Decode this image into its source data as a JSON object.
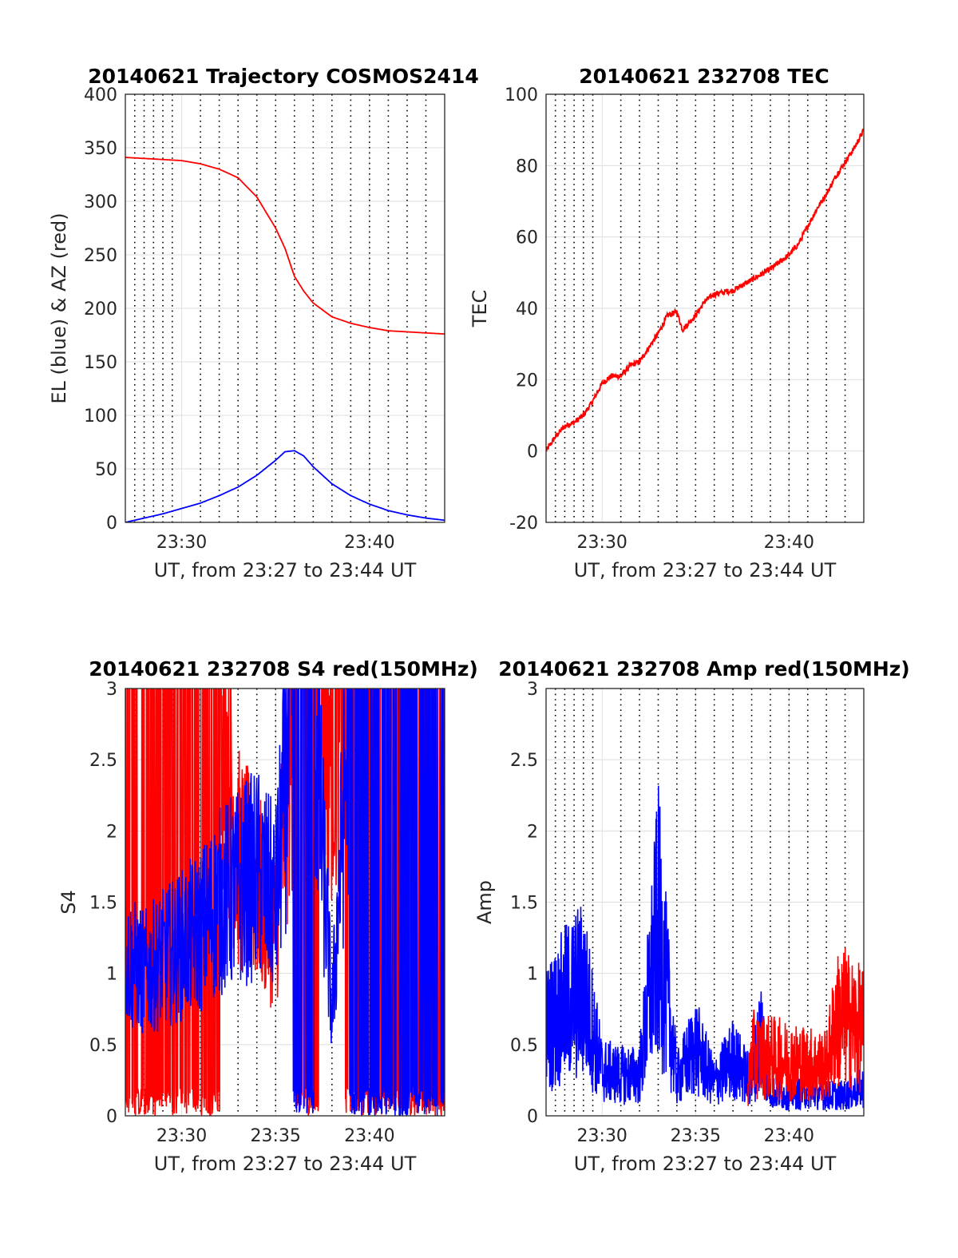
{
  "chart_data": [
    {
      "type": "line",
      "title": "20140621 Trajectory COSMOS2414",
      "xlabel": "UT, from 23:27 to 23:44 UT",
      "ylabel": "EL (blue) & AZ (red)",
      "xlim": [
        "23:27",
        "23:44"
      ],
      "ylim": [
        0,
        400
      ],
      "yticks": [
        0,
        50,
        100,
        150,
        200,
        250,
        300,
        350,
        400
      ],
      "xticks": [
        "23:30",
        "23:40"
      ],
      "grid": "on",
      "series": [
        {
          "color": "#ff0000",
          "x": [
            "23:27",
            "23:28",
            "23:29",
            "23:30",
            "23:31",
            "23:32",
            "23:33",
            "23:34",
            "23:35",
            "23:35.5",
            "23:36",
            "23:36.5",
            "23:37",
            "23:38",
            "23:39",
            "23:40",
            "23:41",
            "23:42",
            "23:43",
            "23:44"
          ],
          "values": [
            341,
            340,
            339,
            338,
            335,
            330,
            322,
            304,
            275,
            256,
            230,
            216,
            205,
            192,
            186,
            182,
            179,
            178,
            177,
            176
          ]
        },
        {
          "color": "#0000ff",
          "x": [
            "23:27",
            "23:28",
            "23:29",
            "23:30",
            "23:31",
            "23:32",
            "23:33",
            "23:34",
            "23:35",
            "23:35.5",
            "23:36",
            "23:36.5",
            "23:37",
            "23:38",
            "23:39",
            "23:40",
            "23:41",
            "23:42",
            "23:43",
            "23:44"
          ],
          "values": [
            0,
            4,
            8,
            13,
            18,
            25,
            33,
            44,
            58,
            66,
            67,
            62,
            52,
            36,
            25,
            17,
            11,
            7,
            4,
            2
          ]
        }
      ]
    },
    {
      "type": "line",
      "title": "20140621 232708 TEC",
      "xlabel": "UT, from 23:27 to 23:44 UT",
      "ylabel": "TEC",
      "xlim": [
        "23:27",
        "23:44"
      ],
      "ylim": [
        -20,
        100
      ],
      "yticks": [
        -20,
        0,
        20,
        40,
        60,
        80,
        100
      ],
      "xticks": [
        "23:30",
        "23:40"
      ],
      "grid": "on",
      "series": [
        {
          "color": "#ff0000",
          "x": [
            "23:27",
            "23:27.5",
            "23:28",
            "23:28.5",
            "23:29",
            "23:29.5",
            "23:30",
            "23:30.5",
            "23:31",
            "23:31.5",
            "23:32",
            "23:32.5",
            "23:33",
            "23:33.5",
            "23:34",
            "23:34.3",
            "23:35",
            "23:35.5",
            "23:36",
            "23:37",
            "23:38",
            "23:39",
            "23:40",
            "23:40.5",
            "23:41",
            "23:41.5",
            "23:42",
            "23:42.5",
            "23:43",
            "23:43.5",
            "23:44"
          ],
          "values": [
            0,
            4,
            7,
            8,
            10,
            14,
            19,
            21,
            21,
            24,
            25,
            29,
            33,
            38,
            39,
            34,
            38,
            42,
            44,
            45,
            48,
            51,
            55,
            58,
            63,
            68,
            72,
            77,
            81,
            85,
            90
          ]
        }
      ]
    },
    {
      "type": "line",
      "title": "20140621 232708 S4 red(150MHz)",
      "xlabel": "UT, from 23:27 to 23:44 UT",
      "ylabel": "S4",
      "xlim": [
        "23:27",
        "23:44"
      ],
      "ylim": [
        0,
        3
      ],
      "yticks": [
        0,
        0.5,
        1,
        1.5,
        2,
        2.5,
        3
      ],
      "xticks": [
        "23:30",
        "23:35",
        "23:40"
      ],
      "grid": "on",
      "series": [
        {
          "color": "#ff0000",
          "x": [
            "23:27",
            "23:28",
            "23:29",
            "23:30",
            "23:31",
            "23:32",
            "23:33",
            "23:34",
            "23:35",
            "23:36",
            "23:37",
            "23:38",
            "23:39",
            "23:40",
            "23:41",
            "23:42",
            "23:43",
            "23:44"
          ],
          "values": [
            3,
            3,
            3,
            3,
            3,
            3,
            1.8,
            1.6,
            1.3,
            3,
            3,
            2.7,
            3,
            3,
            3,
            3,
            3,
            3
          ]
        },
        {
          "color": "#0000ff",
          "x": [
            "23:27",
            "23:28",
            "23:29",
            "23:30",
            "23:31",
            "23:32",
            "23:33",
            "23:34",
            "23:35",
            "23:36",
            "23:37",
            "23:38",
            "23:39",
            "23:40",
            "23:41",
            "23:42",
            "23:43",
            "23:44"
          ],
          "values": [
            1.1,
            1.0,
            1.1,
            1.2,
            1.3,
            1.5,
            1.6,
            1.7,
            1.5,
            3,
            3,
            0.7,
            3,
            3,
            3,
            3,
            3,
            3
          ]
        }
      ]
    },
    {
      "type": "line",
      "title": "20140621 232708 Amp red(150MHz)",
      "xlabel": "UT, from 23:27 to 23:44 UT",
      "ylabel": "Amp",
      "xlim": [
        "23:27",
        "23:44"
      ],
      "ylim": [
        0,
        3
      ],
      "yticks": [
        0,
        0.5,
        1,
        1.5,
        2,
        2.5,
        3
      ],
      "xticks": [
        "23:30",
        "23:35",
        "23:40"
      ],
      "grid": "on",
      "series": [
        {
          "color": "#0000ff",
          "x": [
            "23:27",
            "23:28",
            "23:29",
            "23:30",
            "23:31",
            "23:32",
            "23:33",
            "23:34",
            "23:35",
            "23:36",
            "23:37",
            "23:38",
            "23:38.5",
            "23:39",
            "23:40",
            "23:41",
            "23:42",
            "23:43",
            "23:44"
          ],
          "values": [
            1.05,
            1.35,
            1.55,
            0.55,
            0.5,
            0.5,
            2.35,
            0.45,
            0.85,
            0.4,
            0.7,
            0.4,
            1.05,
            0.3,
            0.25,
            0.3,
            0.25,
            0.25,
            0.35
          ]
        },
        {
          "color": "#ff0000",
          "x": [
            "23:37.8",
            "23:38",
            "23:42",
            "23:42.5",
            "23:43",
            "23:43.5",
            "23:44"
          ],
          "values": [
            0.3,
            0.75,
            0.6,
            1.15,
            1.2,
            1.1,
            1.05
          ]
        }
      ]
    }
  ]
}
